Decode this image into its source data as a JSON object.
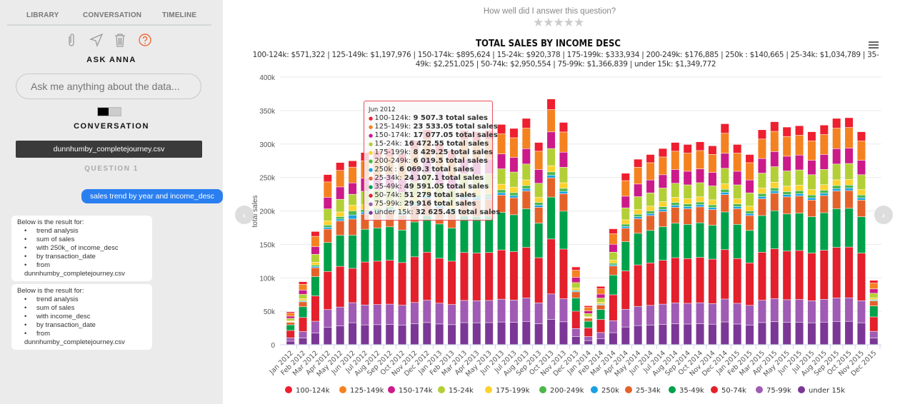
{
  "sidebar": {
    "tabs": [
      "LIBRARY",
      "CONVERSATION",
      "TIMELINE"
    ],
    "toolbar_icons": [
      "paperclip-icon",
      "send-icon",
      "trash-icon",
      "help-icon"
    ],
    "ask_title": "ASK ANNA",
    "ask_placeholder": "Ask me anything about the data...",
    "conversation_title": "CONVERSATION",
    "file_name": "dunnhumby_completejourney.csv",
    "question_label": "QUESTION 1",
    "user_message": "sales trend by year and income_desc",
    "bot_messages": [
      {
        "heading": "Below is the result for:",
        "items": [
          "trend analysis",
          "sum of sales",
          "with 250k_ of income_desc",
          "by transaction_date",
          "from dunnhumby_completejourney.csv"
        ]
      },
      {
        "heading": "Below is the result for:",
        "items": [
          "trend analysis",
          "sum of sales",
          "with income_desc",
          "by transaction_date",
          "from dunnhumby_completejourney.csv"
        ]
      }
    ]
  },
  "rating": {
    "question": "How well did I answer this question?",
    "stars": 5,
    "selected": 0
  },
  "colors": {
    "accent": "#2a7ff0",
    "help_icon": "#f26b3a"
  },
  "chart_data": {
    "type": "bar",
    "stacked": true,
    "title": "TOTAL SALES BY INCOME DESC",
    "subtitle": "100-124k: $571,322 | 125-149k: $1,197,976 | 150-174k: $895,624 | 15-24k: $920,378 | 175-199k: $333,934 | 200-249k: $176,885 | 250k : $140,665 | 25-34k: $1,034,789 | 35-49k: $2,251,025 | 50-74k: $2,950,554 | 75-99k: $1,366,839 | under 15k: $1,349,772",
    "ylabel": "total sales",
    "xlabel": "",
    "ylim": [
      0,
      400000
    ],
    "yticks": [
      "0",
      "50k",
      "100k",
      "150k",
      "200k",
      "250k",
      "300k",
      "350k",
      "400k"
    ],
    "grid": true,
    "legend": "bottom",
    "categories": [
      "Jan 2012",
      "Feb 2012",
      "Mar 2012",
      "Apr 2012",
      "May 2012",
      "Jun 2012",
      "Jul 2012",
      "Aug 2012",
      "Sep 2012",
      "Oct 2012",
      "Nov 2012",
      "Dec 2012",
      "Jan 2013",
      "Feb 2013",
      "Mar 2013",
      "Apr 2013",
      "May 2013",
      "Jun 2013",
      "Jul 2013",
      "Aug 2013",
      "Sep 2013",
      "Oct 2013",
      "Nov 2013",
      "Dec 2013",
      "Jan 2014",
      "Feb 2014",
      "Mar 2014",
      "Apr 2014",
      "May 2014",
      "Jun 2014",
      "Jul 2014",
      "Aug 2014",
      "Sep 2014",
      "Oct 2014",
      "Nov 2014",
      "Dec 2014",
      "Jan 2015",
      "Feb 2015",
      "Mar 2015",
      "Apr 2015",
      "May 2015",
      "Jun 2015",
      "Jul 2015",
      "Aug 2015",
      "Sep 2015",
      "Oct 2015",
      "Nov 2015",
      "Dec 2015"
    ],
    "month_totals": [
      49000,
      94000,
      169000,
      254000,
      272000,
      274627,
      287000,
      290000,
      293000,
      285000,
      305000,
      321000,
      300000,
      290000,
      320000,
      318000,
      320000,
      329000,
      323000,
      338000,
      302000,
      367000,
      332000,
      116000,
      58000,
      87000,
      173000,
      256000,
      277000,
      284000,
      293000,
      302000,
      299000,
      303000,
      297000,
      330000,
      299000,
      284000,
      321000,
      333000,
      325000,
      327000,
      318000,
      328000,
      338000,
      339000,
      318000,
      96000
    ],
    "series": [
      {
        "name": "100-124k",
        "color": "#ee1f2f",
        "total": 571322
      },
      {
        "name": "125-149k",
        "color": "#f58220",
        "total": 1197976
      },
      {
        "name": "150-174k",
        "color": "#cc1a8a",
        "total": 895624
      },
      {
        "name": "15-24k",
        "color": "#b3cf36",
        "total": 920378
      },
      {
        "name": "175-199k",
        "color": "#fdd22e",
        "total": 333934
      },
      {
        "name": "200-249k",
        "color": "#4cb848",
        "total": 176885
      },
      {
        "name": "250k",
        "color": "#1ba1e2",
        "total": 140665
      },
      {
        "name": "25-34k",
        "color": "#e4622a",
        "total": 1034789
      },
      {
        "name": "35-49k",
        "color": "#00a14b",
        "total": 2251025
      },
      {
        "name": "50-74k",
        "color": "#e3202b",
        "total": 2950554
      },
      {
        "name": "75-99k",
        "color": "#a05bb5",
        "total": 1366839
      },
      {
        "name": "under 15k",
        "color": "#7b3796",
        "total": 1349772
      }
    ],
    "tooltip": {
      "category": "Jun 2012",
      "suffix": "total sales",
      "rows": [
        {
          "name": "100-124k",
          "value": "9 507.3"
        },
        {
          "name": "125-149k",
          "value": "23 533.05"
        },
        {
          "name": "150-174k",
          "value": "17 077.05"
        },
        {
          "name": "15-24k",
          "value": "16 472.55"
        },
        {
          "name": "175-199k",
          "value": "8 429.25"
        },
        {
          "name": "200-249k",
          "value": "6 019.5"
        },
        {
          "name": "250k ",
          "value": "6 069.3"
        },
        {
          "name": "25-34k",
          "value": "24 107.1"
        },
        {
          "name": "35-49k",
          "value": "49 591.05"
        },
        {
          "name": "50-74k",
          "value": "51 279"
        },
        {
          "name": "75-99k",
          "value": "29 916"
        },
        {
          "name": "under 15k",
          "value": "32 625.45"
        }
      ]
    }
  }
}
